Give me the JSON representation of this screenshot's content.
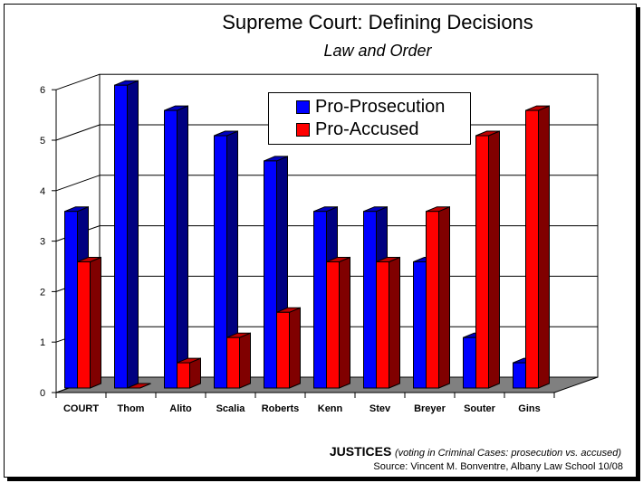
{
  "header": {
    "title": "Supreme Court: Defining Decisions",
    "subtitle": "Law and Order"
  },
  "legend": {
    "items": [
      {
        "label": "Pro-Prosecution",
        "color": "#0000FF"
      },
      {
        "label": "Pro-Accused",
        "color": "#FF0000"
      }
    ]
  },
  "footer": {
    "axis_title": "JUSTICES",
    "axis_note": "(voting in Criminal Cases: prosecution vs. accused)",
    "source": "Source: Vincent M. Bonventre, Albany Law School 10/08"
  },
  "colors": {
    "prosecution_front": "#0000FF",
    "prosecution_side": "#000080",
    "accused_front": "#FF0000",
    "accused_side": "#800000",
    "floor": "#808080"
  },
  "chart_data": {
    "type": "bar",
    "title": "Supreme Court: Defining Decisions",
    "subtitle": "Law and Order",
    "xlabel": "JUSTICES (voting in Criminal Cases: prosecution vs. accused)",
    "ylabel": "",
    "categories": [
      "COURT",
      "Thom",
      "Alito",
      "Scalia",
      "Roberts",
      "Kenn",
      "Stev",
      "Breyer",
      "Souter",
      "Gins"
    ],
    "series": [
      {
        "name": "Pro-Prosecution",
        "values": [
          3.5,
          6,
          5.5,
          5,
          4.5,
          3.5,
          3.5,
          2.5,
          1,
          0.5
        ]
      },
      {
        "name": "Pro-Accused",
        "values": [
          2.5,
          0,
          0.5,
          1,
          1.5,
          2.5,
          2.5,
          3.5,
          5,
          5.5
        ]
      }
    ],
    "ylim": [
      0,
      6
    ],
    "yticks": [
      0,
      1,
      2,
      3,
      4,
      5,
      6
    ],
    "grid": true,
    "legend_position": "top-center",
    "style": "3d-clustered-column",
    "source": "Source: Vincent M. Bonventre, Albany Law School 10/08"
  }
}
